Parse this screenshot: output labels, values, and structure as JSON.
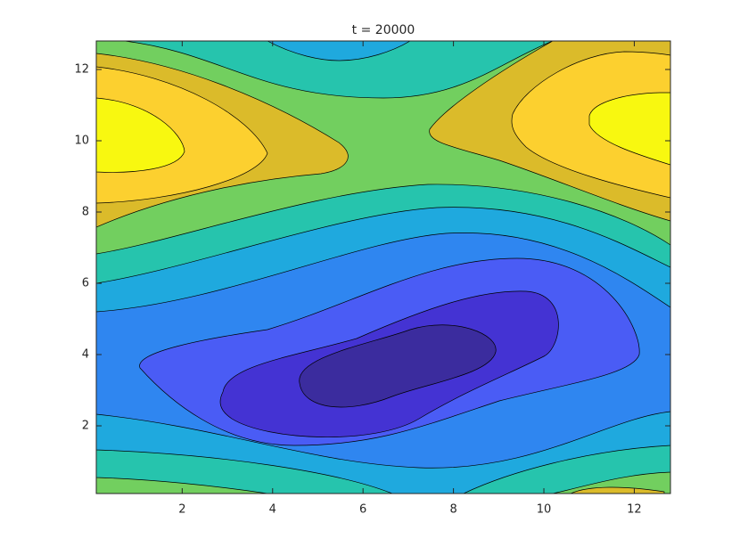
{
  "chart_data": {
    "type": "contour",
    "title": "t = 20000",
    "xlim": [
      0.1,
      12.8
    ],
    "ylim": [
      0.1,
      12.8
    ],
    "xticks": [
      2,
      4,
      6,
      8,
      10,
      12
    ],
    "yticks": [
      2,
      4,
      6,
      8,
      10,
      12
    ],
    "colors": [
      "#3b2c9e",
      "#4433d3",
      "#4a5cf5",
      "#2f86f0",
      "#1fa9de",
      "#26c4ad",
      "#72cf5f",
      "#dbbb2a",
      "#fcd02f",
      "#f8f810"
    ]
  }
}
